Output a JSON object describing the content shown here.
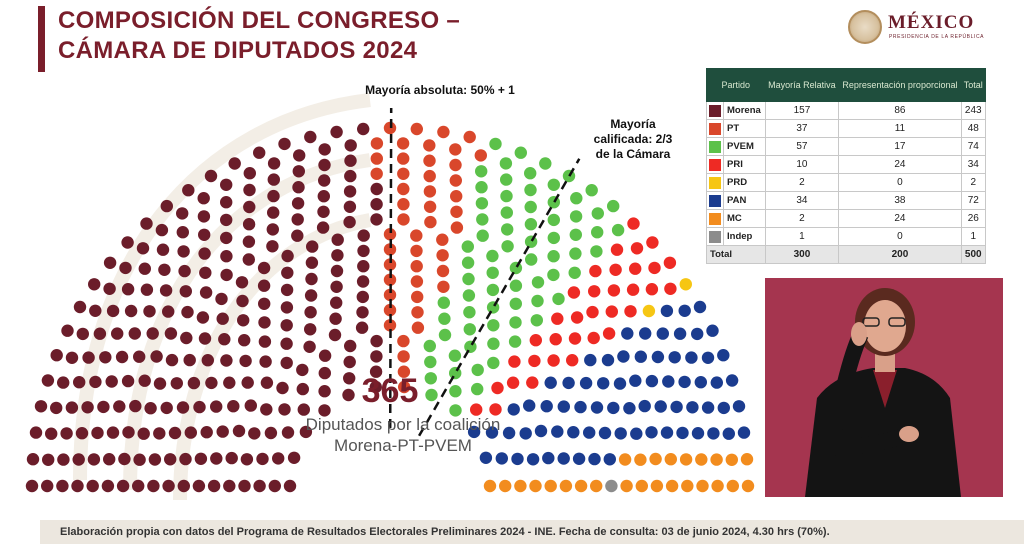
{
  "header": {
    "title_line1": "COMPOSICIÓN DEL CONGRESO –",
    "title_line2": "CÁMARA DE DIPUTADOS 2024"
  },
  "logo": {
    "text": "MÉXICO",
    "subtext": "PRESIDENCIA DE LA REPÚBLICA",
    "icon": "coat-of-arms-icon"
  },
  "annotations": {
    "absolute_majority": "Mayoría absoluta: 50% + 1",
    "qualified_majority_line1": "Mayoría",
    "qualified_majority_line2": "calificada: 2/3",
    "qualified_majority_line3": "de la Cámara"
  },
  "coalition": {
    "number": "365",
    "label_line1": "Diputados por la coalición",
    "label_line2": "Morena-PT-PVEM"
  },
  "table": {
    "headers": [
      "Partido",
      "Mayoría Relativa",
      "Representación proporcional",
      "Total"
    ],
    "rows": [
      {
        "party": "Morena",
        "relativa": "157",
        "proporcional": "86",
        "total": "243",
        "color": "#6b1d2a"
      },
      {
        "party": "PT",
        "relativa": "37",
        "proporcional": "11",
        "total": "48",
        "color": "#d9472b"
      },
      {
        "party": "PVEM",
        "relativa": "57",
        "proporcional": "17",
        "total": "74",
        "color": "#5cc14a"
      },
      {
        "party": "PRI",
        "relativa": "10",
        "proporcional": "24",
        "total": "34",
        "color": "#ee2a24"
      },
      {
        "party": "PRD",
        "relativa": "2",
        "proporcional": "0",
        "total": "2",
        "color": "#f6c613"
      },
      {
        "party": "PAN",
        "relativa": "34",
        "proporcional": "38",
        "total": "72",
        "color": "#1b3c8f"
      },
      {
        "party": "MC",
        "relativa": "2",
        "proporcional": "24",
        "total": "26",
        "color": "#f28c1e"
      },
      {
        "party": "Indep",
        "relativa": "1",
        "proporcional": "0",
        "total": "1",
        "color": "#8c8c8c"
      }
    ],
    "total_row": {
      "label": "Total",
      "relativa": "300",
      "proporcional": "200",
      "total": "500"
    }
  },
  "chart_data": {
    "type": "parliament",
    "total_seats": 500,
    "series": [
      {
        "name": "Morena",
        "value": 243,
        "color": "#6b1d2a"
      },
      {
        "name": "PT",
        "value": 48,
        "color": "#d9472b"
      },
      {
        "name": "PVEM",
        "value": 74,
        "color": "#5cc14a"
      },
      {
        "name": "PRI",
        "value": 34,
        "color": "#ee2a24"
      },
      {
        "name": "PRD",
        "value": 2,
        "color": "#f6c613"
      },
      {
        "name": "PAN",
        "value": 72,
        "color": "#1b3c8f"
      },
      {
        "name": "MC",
        "value": 26,
        "color": "#f28c1e"
      },
      {
        "name": "Indep",
        "value": 1,
        "color": "#8c8c8c"
      }
    ],
    "thresholds": [
      {
        "label": "Mayoría absoluta: 50% + 1",
        "seats": 251
      },
      {
        "label": "Mayoría calificada: 2/3 de la Cámara",
        "seats": 334
      }
    ]
  },
  "footer": {
    "source": "Elaboración propia con datos del Programa de Resultados Electorales Preliminares 2024 - INE. Fecha de consulta: 03 de junio 2024, 4.30 hrs (70%)."
  }
}
